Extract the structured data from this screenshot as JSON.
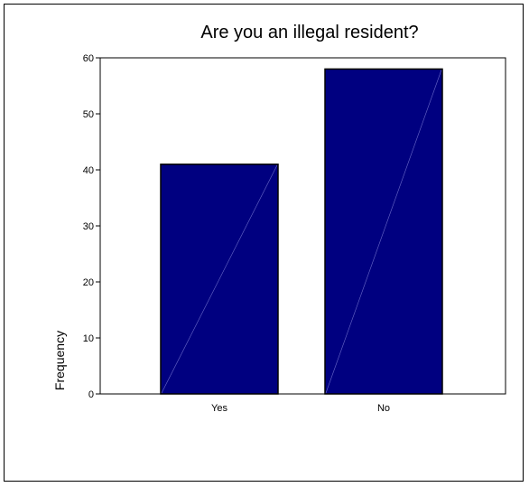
{
  "chart_data": {
    "type": "bar",
    "title": "Are you an illegal resident?",
    "xlabel": "",
    "ylabel": "Frequency",
    "categories": [
      "Yes",
      "No"
    ],
    "values": [
      41,
      58
    ],
    "ylim": [
      0,
      60
    ],
    "yticks": [
      0,
      10,
      20,
      30,
      40,
      50,
      60
    ],
    "grid": false,
    "legend": "none",
    "bar_color": "#000080",
    "bar_outline_color": "#000000",
    "background_color": "#ffffff"
  }
}
